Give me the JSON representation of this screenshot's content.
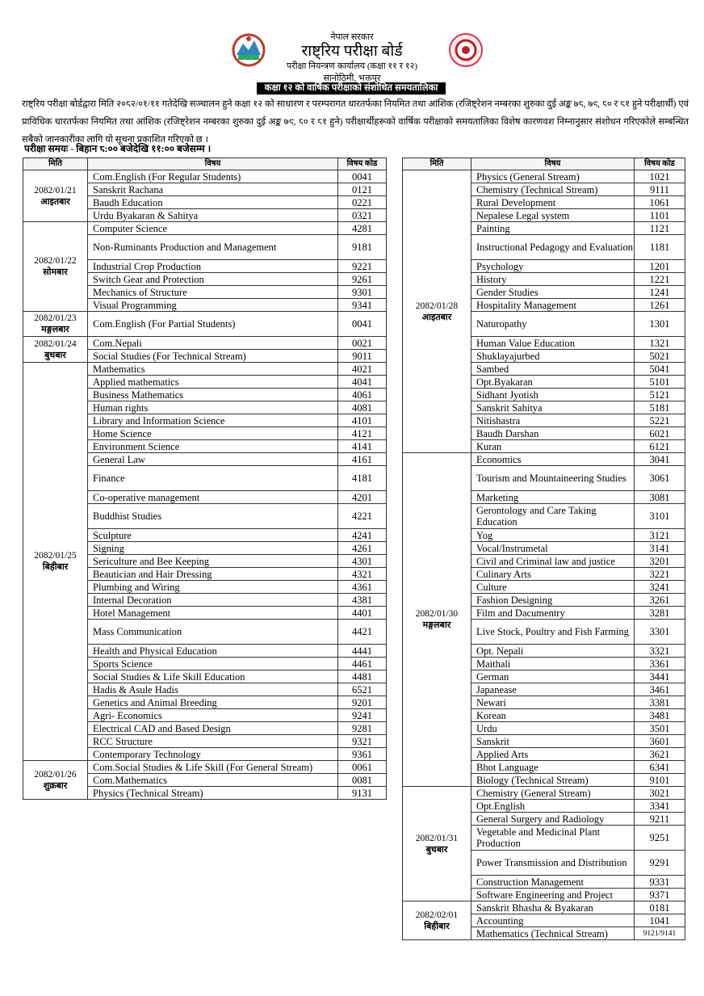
{
  "header": {
    "government": "नेपाल सरकार",
    "board": "राष्ट्रिय परीक्षा बोर्ड",
    "office": "परीक्षा नियन्त्रण कार्यालय (कक्षा ११ र १२)",
    "location": "सानोठिमी, भक्तपुर",
    "title": "कक्षा १२ को वार्षिक परीक्षाको संशोधित समयतालिका"
  },
  "notice": "राष्ट्रिय परीक्षा बोर्डद्वारा मिति २०८२/०१/११ गतेदेखि सञ्चालन हुने कक्षा १२ को साधारण र परम्परागत धारतर्फका नियमित तथा आंशिक (रजिष्ट्रेशन नम्बरका शुरुका दुई अङ्क ७८, ७९, ८० र ८१ हुने परीक्षार्थी) एवं प्राविधिक धारतर्फका नियमित तथा आंशिक (रजिष्ट्रेशन नम्बरका शुरुका दुई अङ्क ७९, ८० र ८१ हुने) परीक्षार्थीहरूको वार्षिक परीक्षाको समयतालिका विशेष कारणवश निम्नानुसार संशोधन गरिएकोले सम्बन्धित सबैको जानकारीका लागि यो सूचना प्रकाशित गरिएको छ ।",
  "exam_time": "परीक्षा समयः - बिहान ८:०० बजेदेखि ११:०० बजेसम्म ।",
  "tables": [
    {
      "headers": [
        "मिति",
        "विषय",
        "विषय कोड"
      ],
      "groups": [
        {
          "date": "2082/01/21",
          "day": "आइतबार",
          "rows": [
            [
              "Com.English (For Regular Students)",
              "0041"
            ],
            [
              "Sanskrit Rachana",
              "0121"
            ],
            [
              "Baudh Education",
              "0221"
            ],
            [
              "Urdu Byakaran & Sahitya",
              "0321"
            ]
          ]
        },
        {
          "date": "2082/01/22",
          "day": "सोमबार",
          "rows": [
            [
              "Computer Science",
              "4281"
            ],
            [
              "Non-Ruminants Production and Management",
              "9181"
            ],
            [
              "Industrial Crop Production",
              "9221"
            ],
            [
              "Switch Gear and Protection",
              "9261"
            ],
            [
              "Mechanics of Structure",
              "9301"
            ],
            [
              "Visual Programming",
              "9341"
            ]
          ]
        },
        {
          "date": "2082/01/23",
          "day": "मङ्गलबार",
          "rows": [
            [
              "Com.English (For Partial Students)",
              "0041"
            ]
          ]
        },
        {
          "date": "2082/01/24",
          "day": "बुधबार",
          "rows": [
            [
              "Com.Nepali",
              "0021"
            ],
            [
              "Social Studies (For Technical Stream)",
              "9011"
            ]
          ]
        },
        {
          "date": "2082/01/25",
          "day": "बिहीबार",
          "rows": [
            [
              "Mathematics",
              "4021"
            ],
            [
              "Applied mathematics",
              "4041"
            ],
            [
              "Business Mathematics",
              "4061"
            ],
            [
              "Human rights",
              "4081"
            ],
            [
              "Library and Information Science",
              "4101"
            ],
            [
              "Home Science",
              "4121"
            ],
            [
              "Environment  Science",
              "4141"
            ],
            [
              "General Law",
              "4161"
            ],
            [
              "Finance",
              "4181"
            ],
            [
              "Co-operative management",
              "4201"
            ],
            [
              "Buddhist Studies",
              "4221"
            ],
            [
              "Sculpture",
              "4241"
            ],
            [
              "Signing",
              "4261"
            ],
            [
              "Sericulture and Bee Keeping",
              "4301"
            ],
            [
              "Beautician and Hair Dressing",
              "4321"
            ],
            [
              "Plumbing and Wiring",
              "4361"
            ],
            [
              "Internal Decoration",
              "4381"
            ],
            [
              "Hotel Management",
              "4401"
            ],
            [
              "Mass Communication",
              "4421"
            ],
            [
              "Health and Physical Education",
              "4441"
            ],
            [
              "Sports Science",
              "4461"
            ],
            [
              "Social Studies & Life Skill Education",
              "4481"
            ],
            [
              "Hadis & Asule Hadis",
              "6521"
            ],
            [
              "Genetics and Animal Breeding",
              "9201"
            ],
            [
              "Agri- Economics",
              "9241"
            ],
            [
              "Electrical CAD and Based Design",
              "9281"
            ],
            [
              "RCC Structure",
              "9321"
            ],
            [
              "Contemporary Technology",
              "9361"
            ]
          ]
        },
        {
          "date": "2082/01/26",
          "day": "शुक्रबार",
          "rows": [
            [
              "Com.Social Studies & Life Skill (For General Stream)",
              "0061"
            ],
            [
              "Com.Mathematics",
              "0081"
            ],
            [
              "Physics (Technical Stream)",
              "9131"
            ]
          ]
        }
      ]
    },
    {
      "headers": [
        "मिति",
        "विषय",
        "विषय कोड"
      ],
      "groups": [
        {
          "date": "2082/01/28",
          "day": "आइतबार",
          "rows": [
            [
              "Physics (General Stream)",
              "1021"
            ],
            [
              "Chemistry (Technical Stream)",
              "9111"
            ],
            [
              "Rural Development",
              "1061"
            ],
            [
              "Nepalese Legal system",
              "1101"
            ],
            [
              "Painting",
              "1121"
            ],
            [
              "Instructional Pedagogy and Evaluation",
              "1181"
            ],
            [
              "Psychology",
              "1201"
            ],
            [
              "History",
              "1221"
            ],
            [
              "Gender Studies",
              "1241"
            ],
            [
              "Hospitality Management",
              "1261"
            ],
            [
              "Naturopathy",
              "1301"
            ],
            [
              "Human Value Education",
              "1321"
            ],
            [
              "Shuklayajurbed",
              "5021"
            ],
            [
              "Sambed",
              "5041"
            ],
            [
              "Opt.Byakaran",
              "5101"
            ],
            [
              "Sidhant Jyotish",
              "5121"
            ],
            [
              "Sanskrit Sahitya",
              "5181"
            ],
            [
              "Nitishastra",
              "5221"
            ],
            [
              "Baudh Darshan",
              "6021"
            ],
            [
              "Kuran",
              "6121"
            ]
          ]
        },
        {
          "date": "2082/01/30",
          "day": "मङ्गलबार",
          "rows": [
            [
              "Economics",
              "3041"
            ],
            [
              "Tourism and Mountaineering Studies",
              "3061"
            ],
            [
              "Marketing",
              "3081"
            ],
            [
              "Gerontology and Care Taking Education",
              "3101"
            ],
            [
              "Yog",
              "3121"
            ],
            [
              "Vocal/Instrumetal",
              "3141"
            ],
            [
              "Civil and Criminal law and justice",
              "3201"
            ],
            [
              "Culinary Arts",
              "3221"
            ],
            [
              "Culture",
              "3241"
            ],
            [
              "Fashion Designing",
              "3261"
            ],
            [
              "Film and Dacumentry",
              "3281"
            ],
            [
              "Live Stock, Poultry and Fish Farming",
              "3301"
            ],
            [
              "Opt. Nepali",
              "3321"
            ],
            [
              "Maithali",
              "3361"
            ],
            [
              "German",
              "3441"
            ],
            [
              "Japanease",
              "3461"
            ],
            [
              "Newari",
              "3381"
            ],
            [
              "Korean",
              "3481"
            ],
            [
              "Urdu",
              "3501"
            ],
            [
              "Sanskrit",
              "3601"
            ],
            [
              "Applied Arts",
              "3621"
            ],
            [
              "Bhot Language",
              "6341"
            ],
            [
              "Biology (Technical Stream)",
              "9101"
            ]
          ]
        },
        {
          "date": "2082/01/31",
          "day": "बुधबार",
          "rows": [
            [
              "Chemistry (General Stream)",
              "3021"
            ],
            [
              "Opt.English",
              "3341"
            ],
            [
              "General Surgery and Radiology",
              "9211"
            ],
            [
              "Vegetable and Medicinal Plant Production",
              "9251"
            ],
            [
              "Power Transmission and Distribution",
              "9291"
            ],
            [
              "Construction Management",
              "9331"
            ],
            [
              "Software Engineering and Project",
              "9371"
            ]
          ]
        },
        {
          "date": "2082/02/01",
          "day": "बिहीबार",
          "rows": [
            [
              "Sanskrit Bhasha & Byakaran",
              "0181"
            ],
            [
              "Accounting",
              "1041"
            ],
            [
              "Mathematics (Technical Stream)",
              "9121/9141"
            ]
          ]
        }
      ]
    }
  ]
}
